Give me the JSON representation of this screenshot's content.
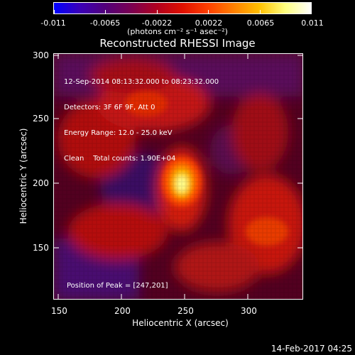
{
  "colorbar": {
    "tick_labels": [
      "-0.011",
      "-0.0065",
      "-0.0022",
      "0.0022",
      "0.0065",
      "0.011"
    ],
    "units_label": "(photons cm⁻² s⁻¹ asec⁻²)",
    "colors": [
      "#0000ff",
      "#3b00b8",
      "#52007a",
      "#7a0052",
      "#b00020",
      "#e01000",
      "#ff4000",
      "#ff8000",
      "#ffc000",
      "#ffff80",
      "#ffffff"
    ]
  },
  "title": "Reconstructed RHESSI Image",
  "info": {
    "time_range": "12-Sep-2014 08:13:32.000 to 08:23:32.000",
    "detectors": "Detectors: 3F 6F 9F, Att 0",
    "energy": "Energy Range: 12.0 - 25.0 keV",
    "clean": "Clean",
    "counts": "Total counts: 1.90E+04",
    "peak": "Position of Peak = [247,201]"
  },
  "axes": {
    "x_label": "Heliocentric X (arcsec)",
    "y_label": "Heliocentric Y (arcsec)",
    "x_ticks": [
      "150",
      "200",
      "250",
      "300"
    ],
    "y_ticks": [
      "150",
      "200",
      "250",
      "300"
    ]
  },
  "timestamp": "14-Feb-2017 04:25"
}
